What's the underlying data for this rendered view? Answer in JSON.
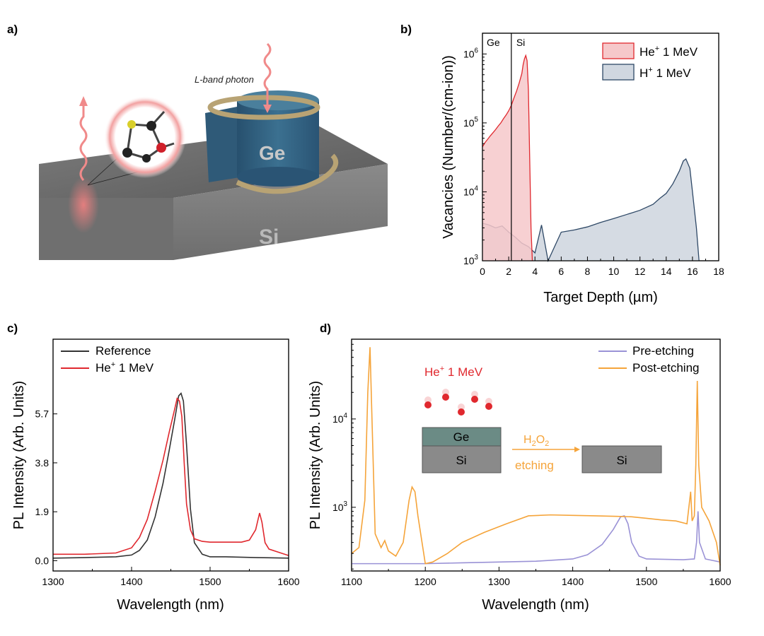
{
  "panel_labels": {
    "a": "a)",
    "b": "b)",
    "c": "c)",
    "d": "d)"
  },
  "illustration": {
    "photon_label": "L-band photon",
    "ge_label": "Ge",
    "si_label": "Si"
  },
  "colors": {
    "red": "#e0282e",
    "red_fill": "#f6c8ca",
    "navy": "#2e4866",
    "navy_fill": "#d0d7e0",
    "black": "#333333",
    "lavender": "#9a92d6",
    "orange": "#f5a43a"
  },
  "chart_data": [
    {
      "id": "b",
      "type": "area",
      "xlabel": "Target Depth (µm)",
      "ylabel": "Vacancies (Number/(cm-ion))",
      "xlim": [
        0,
        18
      ],
      "ylim": [
        1000,
        2000000
      ],
      "yscale": "log",
      "xticks": [
        "0",
        "2",
        "4",
        "6",
        "8",
        "10",
        "12",
        "14",
        "16",
        "18"
      ],
      "yticks": [
        {
          "base": "10",
          "exp": "3"
        },
        {
          "base": "10",
          "exp": "4"
        },
        {
          "base": "10",
          "exp": "5"
        },
        {
          "base": "10",
          "exp": "6"
        }
      ],
      "region_labels": [
        "Ge",
        "Si"
      ],
      "interface_x": 2.2,
      "legend_position": "top-right",
      "legend": [
        {
          "ion": "He",
          "charge": "+",
          "energy": "1 MeV",
          "color": "#e0282e",
          "fill": "#f6c8ca"
        },
        {
          "ion": "H",
          "charge": "+",
          "energy": "1 MeV",
          "color": "#2e4866",
          "fill": "#d0d7e0"
        }
      ],
      "series": [
        {
          "name": "He+ 1 MeV",
          "x": [
            0.0,
            0.2,
            0.4,
            0.6,
            0.8,
            1.0,
            1.2,
            1.4,
            1.6,
            1.8,
            2.0,
            2.2,
            2.4,
            2.6,
            2.8,
            3.0,
            3.1,
            3.2,
            3.3,
            3.4,
            3.5,
            3.6,
            3.7,
            3.8
          ],
          "y": [
            45000,
            52000,
            58000,
            65000,
            72000,
            80000,
            90000,
            100000,
            115000,
            130000,
            150000,
            180000,
            230000,
            290000,
            380000,
            520000,
            700000,
            850000,
            950000,
            800000,
            300000,
            30000,
            3000,
            1000
          ]
        },
        {
          "name": "H+ 1 MeV",
          "x": [
            0.0,
            0.5,
            1.0,
            1.5,
            2.0,
            2.5,
            3.0,
            3.5,
            4.0,
            4.5,
            5.0,
            6.0,
            7.0,
            8.0,
            9.0,
            10.0,
            11.0,
            12.0,
            13.0,
            13.5,
            14.0,
            14.5,
            15.0,
            15.3,
            15.5,
            15.8,
            16.0,
            16.3,
            16.5
          ],
          "y": [
            3500,
            3300,
            3000,
            3200,
            2600,
            2200,
            1800,
            1600,
            1300,
            3300,
            1000,
            2600,
            2800,
            3100,
            3600,
            4100,
            4700,
            5400,
            6600,
            8000,
            9500,
            13000,
            20000,
            28000,
            30000,
            22000,
            10000,
            3000,
            1000
          ]
        }
      ]
    },
    {
      "id": "c",
      "type": "line",
      "xlabel": "Wavelength (nm)",
      "ylabel": "PL Intensity (Arb. Units)",
      "xlim": [
        1300,
        1600
      ],
      "ylim": [
        -0.4,
        8.6
      ],
      "xticks": [
        "1300",
        "1400",
        "1500",
        "1600"
      ],
      "yticks": [
        "0.0",
        "1.9",
        "3.8",
        "5.7"
      ],
      "legend_position": "top-left",
      "legend": [
        {
          "name": "Reference",
          "color": "#333333"
        },
        {
          "ion": "He",
          "charge": "+",
          "energy": "1 MeV",
          "color": "#e0282e"
        }
      ],
      "series": [
        {
          "name": "Reference",
          "x": [
            1300,
            1340,
            1380,
            1400,
            1410,
            1420,
            1430,
            1440,
            1448,
            1455,
            1460,
            1463,
            1466,
            1470,
            1475,
            1480,
            1490,
            1500,
            1520,
            1560,
            1600
          ],
          "y": [
            0.1,
            0.12,
            0.15,
            0.22,
            0.4,
            0.8,
            1.7,
            3.0,
            4.3,
            5.5,
            6.4,
            6.5,
            6.2,
            4.5,
            2.0,
            0.7,
            0.25,
            0.15,
            0.15,
            0.12,
            0.1
          ]
        },
        {
          "name": "He+ 1 MeV",
          "x": [
            1300,
            1340,
            1380,
            1400,
            1410,
            1420,
            1430,
            1440,
            1448,
            1455,
            1458,
            1461,
            1464,
            1467,
            1470,
            1475,
            1480,
            1490,
            1500,
            1520,
            1540,
            1550,
            1558,
            1563,
            1566,
            1570,
            1575,
            1590,
            1600
          ],
          "y": [
            0.25,
            0.25,
            0.3,
            0.5,
            0.9,
            1.6,
            2.7,
            3.9,
            5.0,
            5.9,
            6.3,
            6.2,
            5.6,
            3.8,
            2.2,
            1.2,
            0.85,
            0.75,
            0.72,
            0.72,
            0.72,
            0.8,
            1.2,
            1.85,
            1.5,
            0.7,
            0.45,
            0.3,
            0.2
          ]
        }
      ]
    },
    {
      "id": "d",
      "type": "line",
      "xlabel": "Wavelength (nm)",
      "ylabel": "PL Intensity (Arb. Units)",
      "xlim": [
        1100,
        1600
      ],
      "ylim": [
        190,
        80000
      ],
      "yscale": "log",
      "xticks": [
        "1100",
        "1200",
        "1300",
        "1400",
        "1500",
        "1600"
      ],
      "yticks": [
        {
          "base": "10",
          "exp": "3"
        },
        {
          "base": "10",
          "exp": "4"
        }
      ],
      "legend_position": "top-right",
      "legend": [
        {
          "name": "Pre-etching",
          "color": "#9a92d6"
        },
        {
          "name": "Post-etching",
          "color": "#f5a43a"
        }
      ],
      "series": [
        {
          "name": "Pre-etching",
          "x": [
            1100,
            1150,
            1200,
            1250,
            1300,
            1350,
            1400,
            1420,
            1440,
            1455,
            1465,
            1470,
            1475,
            1480,
            1490,
            1500,
            1550,
            1565,
            1568,
            1570,
            1572,
            1580,
            1600
          ],
          "y": [
            230,
            230,
            230,
            235,
            240,
            245,
            260,
            290,
            380,
            560,
            780,
            800,
            650,
            400,
            280,
            260,
            255,
            260,
            400,
            900,
            400,
            260,
            240
          ]
        },
        {
          "name": "Post-etching",
          "x": [
            1100,
            1110,
            1118,
            1122,
            1125,
            1128,
            1132,
            1140,
            1145,
            1150,
            1160,
            1170,
            1178,
            1182,
            1186,
            1190,
            1200,
            1210,
            1230,
            1250,
            1280,
            1310,
            1340,
            1370,
            1400,
            1430,
            1460,
            1480,
            1500,
            1520,
            1540,
            1555,
            1560,
            1562,
            1565,
            1567,
            1569,
            1571,
            1575,
            1585,
            1595,
            1600
          ],
          "y": [
            300,
            350,
            1200,
            20000,
            65000,
            8000,
            500,
            350,
            420,
            320,
            280,
            400,
            1200,
            1700,
            1500,
            800,
            230,
            240,
            300,
            400,
            520,
            650,
            800,
            820,
            810,
            800,
            790,
            780,
            750,
            720,
            700,
            650,
            1500,
            700,
            800,
            3000,
            27000,
            3000,
            1000,
            700,
            400,
            220
          ]
        }
      ],
      "inset": {
        "ion_label": {
          "ion": "He",
          "charge": "+",
          "energy": "1 MeV"
        },
        "before": {
          "top_layer": "Ge",
          "bottom_layer": "Si"
        },
        "process": {
          "reagent": {
            "h": "H",
            "h_sub": "2",
            "o": "O",
            "o_sub": "2"
          },
          "label": "etching"
        },
        "after": {
          "layer": "Si"
        }
      }
    }
  ]
}
